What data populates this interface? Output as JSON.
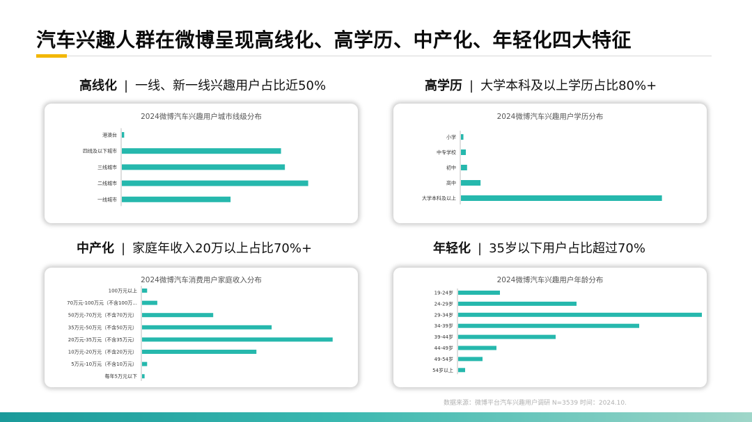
{
  "page": {
    "title": "汽车兴趣人群在微博呈现高线化、高学历、中产化、年轻化四大特征",
    "source": "数据来源：微博平台汽车兴趣用户调研 N=3539 时间：2024.10."
  },
  "colors": {
    "bar": "#26b8ad",
    "accent": "#f2b705",
    "footer": "#1a9a9a"
  },
  "panels": [
    {
      "headline_key": "高线化",
      "headline_sep": "|",
      "headline_text": "一线、新一线兴趣用户占比近50%"
    },
    {
      "headline_key": "高学历",
      "headline_sep": "|",
      "headline_text": "大学本科及以上学历占比80%+"
    },
    {
      "headline_key": "中产化",
      "headline_sep": "|",
      "headline_text": "家庭年收入20万以上占比70%+"
    },
    {
      "headline_key": "年轻化",
      "headline_sep": "|",
      "headline_text": "35岁以下用户占比超过70%"
    }
  ],
  "chart_data": [
    {
      "type": "bar",
      "orientation": "horizontal",
      "title": "2024微博汽车兴趣用户城市线级分布",
      "categories": [
        "港澳台",
        "四线及以下城市",
        "三线城市",
        "二线城市",
        "一线城市"
      ],
      "values": [
        0.3,
        20.5,
        21,
        24,
        14
      ]
    },
    {
      "type": "bar",
      "orientation": "horizontal",
      "title": "2024微博汽车兴趣用户学历分布",
      "categories": [
        "小学",
        "中专学校",
        "初中",
        "高中",
        "大学本科及以上"
      ],
      "values": [
        1,
        2,
        2.5,
        8,
        82
      ]
    },
    {
      "type": "bar",
      "orientation": "horizontal",
      "title": "2024微博汽车消费用户家庭收入分布",
      "categories": [
        "100万元以上",
        "70万元-100万元（不含100万...",
        "50万元-70万元（不含70万元）",
        "35万元-50万元（不含50万元）",
        "20万元-35万元（不含35万元）",
        "10万元-20万元（不含20万元）",
        "5万元-10万元（不含10万元）",
        "每年5万元以下"
      ],
      "values": [
        2,
        6,
        28,
        51,
        75,
        45,
        2,
        1
      ]
    },
    {
      "type": "bar",
      "orientation": "horizontal",
      "title": "2024微博汽车兴趣用户年龄分布",
      "categories": [
        "19-24岁",
        "24-29岁",
        "29-34岁",
        "34-39岁",
        "39-44岁",
        "44-49岁",
        "49-54岁",
        "54岁以上"
      ],
      "values": [
        6,
        17,
        35,
        26,
        14,
        5.5,
        3.5,
        1
      ]
    }
  ]
}
